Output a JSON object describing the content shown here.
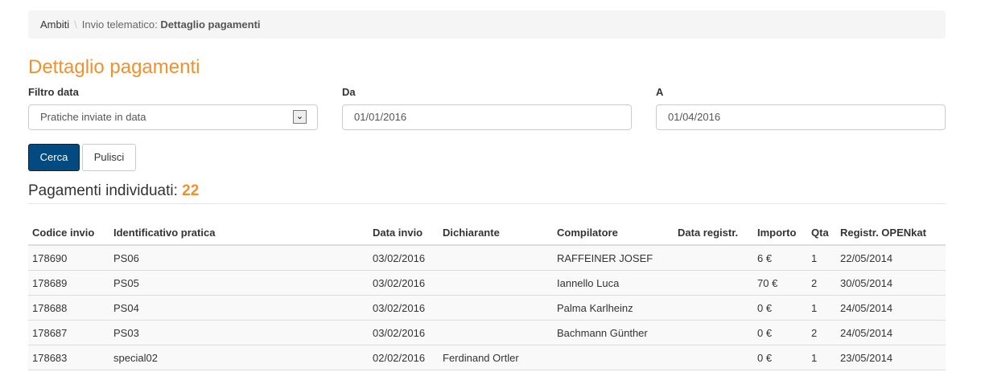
{
  "breadcrumb": {
    "root": "Ambiti",
    "separator": "\\",
    "section": "Invio telematico:",
    "current": "Dettaglio pagamenti"
  },
  "title": "Dettaglio pagamenti",
  "filters": {
    "filtro_label": "Filtro data",
    "filtro_value": "Pratiche inviate in data",
    "da_label": "Da",
    "da_value": "01/01/2016",
    "a_label": "A",
    "a_value": "01/04/2016"
  },
  "buttons": {
    "search": "Cerca",
    "clear": "Pulisci"
  },
  "results": {
    "label": "Pagamenti individuati:",
    "count": "22"
  },
  "table": {
    "columns": [
      "Codice invio",
      "Identificativo pratica",
      "Data invio",
      "Dichiarante",
      "Compilatore",
      "Data registr.",
      "Importo",
      "Qta",
      "Registr. OPENkat"
    ],
    "rows": [
      [
        "178690",
        "PS06",
        "03/02/2016",
        "",
        "RAFFEINER JOSEF",
        "",
        "6 €",
        "1",
        "22/05/2014"
      ],
      [
        "178689",
        "PS05",
        "03/02/2016",
        "",
        "Iannello Luca",
        "",
        "70 €",
        "2",
        "30/05/2014"
      ],
      [
        "178688",
        "PS04",
        "03/02/2016",
        "",
        "Palma Karlheinz",
        "",
        "0 €",
        "1",
        "24/05/2014"
      ],
      [
        "178687",
        "PS03",
        "03/02/2016",
        "",
        "Bachmann Günther",
        "",
        "0 €",
        "2",
        "24/05/2014"
      ],
      [
        "178683",
        "special02",
        "02/02/2016",
        "Ferdinand Ortler",
        "",
        "",
        "0 €",
        "1",
        "23/05/2014"
      ]
    ]
  }
}
